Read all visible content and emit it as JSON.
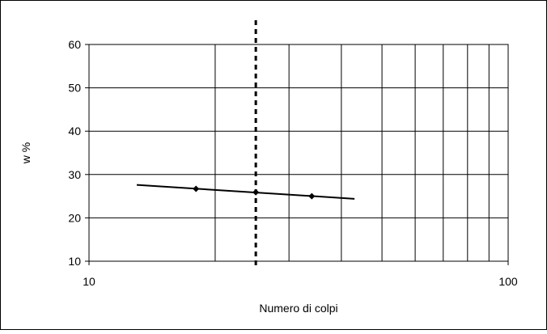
{
  "chart_data": {
    "type": "line",
    "xscale": "log",
    "xlim": [
      10,
      100
    ],
    "ylim": [
      10,
      60
    ],
    "xticks": [
      10,
      100
    ],
    "xtick_labels": [
      "10",
      "100"
    ],
    "xminor_grid": [
      20,
      30,
      40,
      50,
      60,
      70,
      80,
      90
    ],
    "yticks": [
      10,
      20,
      30,
      40,
      50,
      60
    ],
    "ytick_labels": [
      "10",
      "20",
      "30",
      "40",
      "50",
      "60"
    ],
    "xlabel": "Numero di colpi",
    "ylabel": "w %",
    "grid": true,
    "legend": "none",
    "series": [
      {
        "role": "data points",
        "marker": "diamond",
        "color": "#000000",
        "x": [
          18,
          25,
          34
        ],
        "y": [
          26.7,
          25.9,
          25.0
        ]
      },
      {
        "role": "trend line",
        "color": "#000000",
        "x": [
          13,
          43
        ],
        "y": [
          27.6,
          24.4
        ]
      }
    ],
    "reference_lines": [
      {
        "orientation": "vertical",
        "x": 25,
        "style": "dashed",
        "color": "#000000"
      }
    ]
  }
}
